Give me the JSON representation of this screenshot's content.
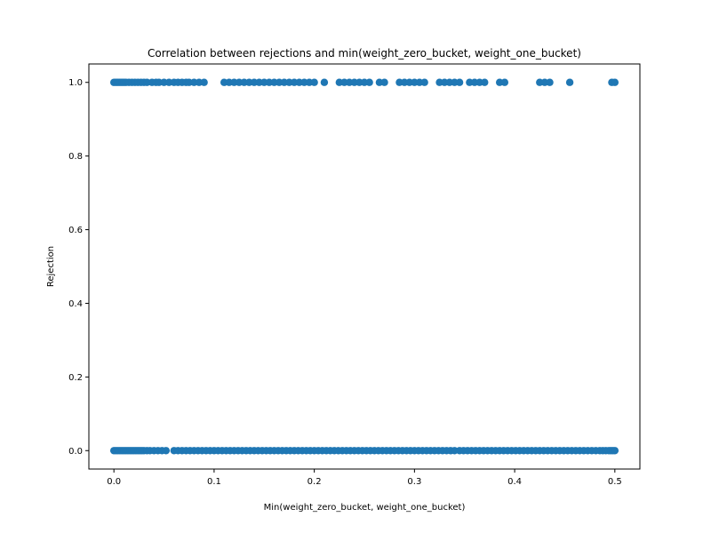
{
  "chart_data": {
    "type": "scatter",
    "title": "Correlation between rejections and min(weight_zero_bucket, weight_one_bucket)",
    "xlabel": "Min(weight_zero_bucket, weight_one_bucket)",
    "ylabel": "Rejection",
    "xlim": [
      -0.025,
      0.525
    ],
    "ylim": [
      -0.05,
      1.05
    ],
    "x_ticks": [
      {
        "value": 0.0,
        "label": "0.0"
      },
      {
        "value": 0.1,
        "label": "0.1"
      },
      {
        "value": 0.2,
        "label": "0.2"
      },
      {
        "value": 0.3,
        "label": "0.3"
      },
      {
        "value": 0.4,
        "label": "0.4"
      },
      {
        "value": 0.5,
        "label": "0.5"
      }
    ],
    "y_ticks": [
      {
        "value": 0.0,
        "label": "0.0"
      },
      {
        "value": 0.2,
        "label": "0.2"
      },
      {
        "value": 0.4,
        "label": "0.4"
      },
      {
        "value": 0.6,
        "label": "0.6"
      },
      {
        "value": 0.8,
        "label": "0.8"
      },
      {
        "value": 1.0,
        "label": "1.0"
      }
    ],
    "grid": false,
    "marker_color": "#1f77b4",
    "series": [
      {
        "y": 1,
        "x": [
          0.0,
          0.002,
          0.004,
          0.006,
          0.008,
          0.01,
          0.012,
          0.015,
          0.018,
          0.021,
          0.024,
          0.027,
          0.03,
          0.033,
          0.038,
          0.042,
          0.045,
          0.05,
          0.055,
          0.06,
          0.064,
          0.068,
          0.072,
          0.075,
          0.08,
          0.085,
          0.09,
          0.11,
          0.115,
          0.12,
          0.125,
          0.13,
          0.135,
          0.14,
          0.145,
          0.15,
          0.155,
          0.16,
          0.165,
          0.17,
          0.175,
          0.18,
          0.185,
          0.19,
          0.195,
          0.2,
          0.21,
          0.225,
          0.23,
          0.235,
          0.24,
          0.245,
          0.25,
          0.255,
          0.265,
          0.27,
          0.285,
          0.29,
          0.295,
          0.3,
          0.305,
          0.31,
          0.325,
          0.33,
          0.335,
          0.34,
          0.345,
          0.355,
          0.36,
          0.365,
          0.37,
          0.385,
          0.39,
          0.425,
          0.43,
          0.435,
          0.455,
          0.497,
          0.5
        ]
      },
      {
        "y": 0,
        "x": [
          0.0,
          0.002,
          0.004,
          0.006,
          0.008,
          0.01,
          0.012,
          0.014,
          0.016,
          0.018,
          0.02,
          0.022,
          0.024,
          0.026,
          0.028,
          0.03,
          0.033,
          0.036,
          0.04,
          0.044,
          0.048,
          0.052,
          0.06,
          0.064,
          0.068,
          0.072,
          0.076,
          0.08,
          0.084,
          0.088,
          0.092,
          0.096,
          0.1,
          0.104,
          0.108,
          0.112,
          0.116,
          0.12,
          0.124,
          0.128,
          0.132,
          0.136,
          0.14,
          0.144,
          0.148,
          0.152,
          0.156,
          0.16,
          0.164,
          0.168,
          0.172,
          0.176,
          0.18,
          0.184,
          0.188,
          0.192,
          0.196,
          0.2,
          0.204,
          0.208,
          0.212,
          0.216,
          0.22,
          0.224,
          0.228,
          0.232,
          0.236,
          0.24,
          0.244,
          0.248,
          0.252,
          0.256,
          0.26,
          0.264,
          0.268,
          0.272,
          0.276,
          0.28,
          0.284,
          0.288,
          0.292,
          0.296,
          0.3,
          0.304,
          0.308,
          0.312,
          0.316,
          0.32,
          0.324,
          0.328,
          0.332,
          0.336,
          0.34,
          0.345,
          0.349,
          0.353,
          0.357,
          0.361,
          0.365,
          0.369,
          0.373,
          0.377,
          0.381,
          0.385,
          0.389,
          0.393,
          0.397,
          0.401,
          0.405,
          0.409,
          0.413,
          0.417,
          0.421,
          0.425,
          0.429,
          0.433,
          0.437,
          0.441,
          0.445,
          0.449,
          0.453,
          0.457,
          0.461,
          0.465,
          0.469,
          0.473,
          0.477,
          0.481,
          0.485,
          0.488,
          0.491,
          0.494,
          0.496,
          0.498,
          0.5
        ]
      }
    ]
  }
}
